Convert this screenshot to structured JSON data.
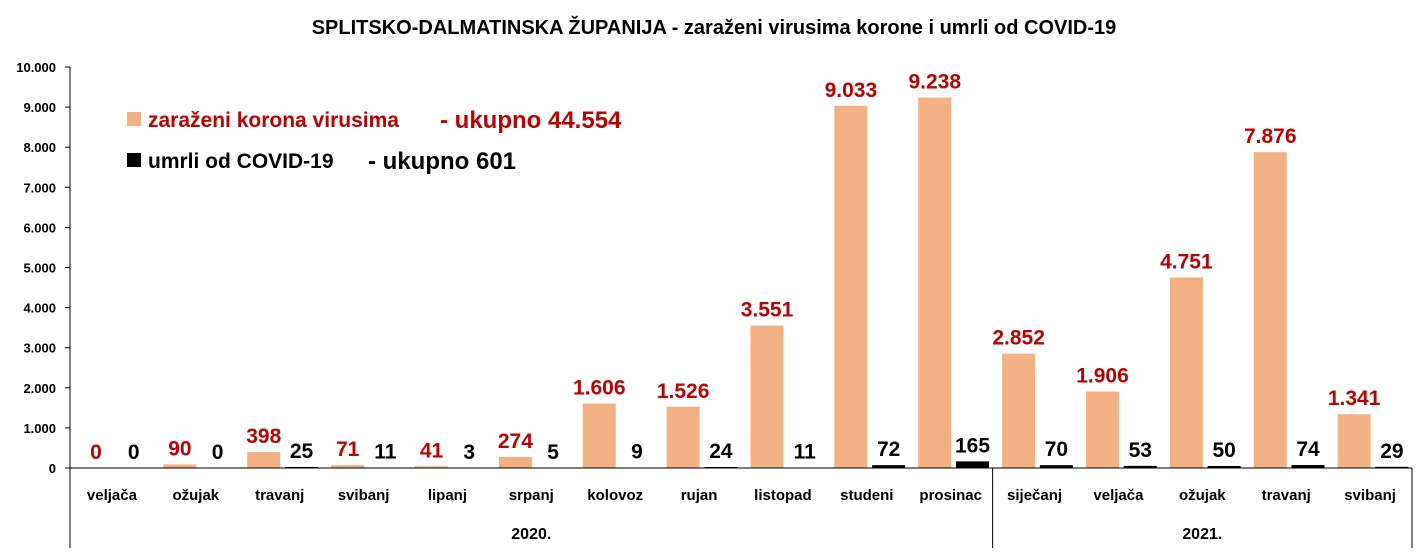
{
  "chart_data": {
    "type": "bar",
    "title": "SPLITSKO-DALMATINSKA ŽUPANIJA - zaraženi virusima korone i umrli od COVID-19",
    "categories": [
      "veljača",
      "ožujak",
      "travanj",
      "svibanj",
      "lipanj",
      "srpanj",
      "kolovoz",
      "rujan",
      "listopad",
      "studeni",
      "prosinac",
      "siječanj",
      "veljača",
      "ožujak",
      "travanj",
      "svibanj"
    ],
    "category_groups": [
      {
        "label": "2020.",
        "count": 11
      },
      {
        "label": "2021.",
        "count": 5
      }
    ],
    "series": [
      {
        "name": "zaraženi korona virusima",
        "total_label": "- ukupno 44.554",
        "color": "#f4b183",
        "label_color": "#c00000",
        "values": [
          0,
          90,
          398,
          71,
          41,
          274,
          1606,
          1526,
          3551,
          9033,
          9238,
          2852,
          1906,
          4751,
          7876,
          1341
        ],
        "labels": [
          "0",
          "90",
          "398",
          "71",
          "41",
          "274",
          "1.606",
          "1.526",
          "3.551",
          "9.033",
          "9.238",
          "2.852",
          "1.906",
          "4.751",
          "7.876",
          "1.341"
        ]
      },
      {
        "name": "umrli od COVID-19",
        "total_label": "- ukupno 601",
        "color": "#000000",
        "label_color": "#000000",
        "values": [
          0,
          0,
          25,
          11,
          3,
          5,
          9,
          24,
          11,
          72,
          165,
          70,
          53,
          50,
          74,
          29
        ],
        "labels": [
          "0",
          "0",
          "25",
          "11",
          "3",
          "5",
          "9",
          "24",
          "11",
          "72",
          "165",
          "70",
          "53",
          "50",
          "74",
          "29"
        ]
      }
    ],
    "ylim": [
      0,
      10000
    ],
    "yticks": [
      0,
      1000,
      2000,
      3000,
      4000,
      5000,
      6000,
      7000,
      8000,
      9000,
      10000
    ],
    "ytick_labels": [
      "0",
      "1.000",
      "2.000",
      "3.000",
      "4.000",
      "5.000",
      "6.000",
      "7.000",
      "8.000",
      "9.000",
      "10.000"
    ],
    "grid": false,
    "legend_position": "top-left"
  }
}
